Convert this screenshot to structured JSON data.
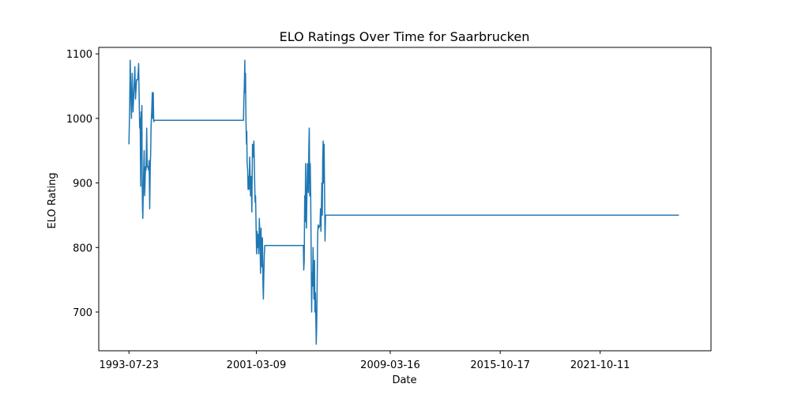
{
  "chart_data": {
    "type": "line",
    "title": "ELO Ratings Over Time for Saarbrucken",
    "xlabel": "Date",
    "ylabel": "ELO Rating",
    "xlim": [
      "1991-10-01",
      "2028-06-01"
    ],
    "ylim": [
      640,
      1110
    ],
    "x_ticks": [
      "1993-07-23",
      "2001-03-09",
      "2009-03-16",
      "2015-10-17",
      "2021-10-11"
    ],
    "y_ticks": [
      700,
      800,
      900,
      1000,
      1100
    ],
    "grid": false,
    "series": [
      {
        "color": "#1f77b4",
        "points": [
          [
            "1993-07-23",
            960
          ],
          [
            "1993-08-07",
            1015
          ],
          [
            "1993-08-18",
            1090
          ],
          [
            "1993-09-01",
            1040
          ],
          [
            "1993-09-15",
            1000
          ],
          [
            "1993-10-01",
            1070
          ],
          [
            "1993-10-20",
            1010
          ],
          [
            "1993-11-10",
            1045
          ],
          [
            "1993-11-28",
            1080
          ],
          [
            "1993-12-12",
            1030
          ],
          [
            "1994-01-05",
            1060
          ],
          [
            "1994-02-01",
            1060
          ],
          [
            "1994-02-20",
            1085
          ],
          [
            "1994-03-05",
            1020
          ],
          [
            "1994-03-15",
            985
          ],
          [
            "1994-03-25",
            1000
          ],
          [
            "1994-04-05",
            895
          ],
          [
            "1994-04-12",
            1010
          ],
          [
            "1994-04-20",
            960
          ],
          [
            "1994-05-01",
            1020
          ],
          [
            "1994-05-08",
            900
          ],
          [
            "1994-05-15",
            860
          ],
          [
            "1994-05-22",
            845
          ],
          [
            "1994-06-01",
            890
          ],
          [
            "1994-06-10",
            920
          ],
          [
            "1994-06-20",
            950
          ],
          [
            "1994-07-01",
            880
          ],
          [
            "1994-07-10",
            900
          ],
          [
            "1994-07-20",
            925
          ],
          [
            "1994-08-01",
            920
          ],
          [
            "1994-08-15",
            985
          ],
          [
            "1994-08-25",
            925
          ],
          [
            "1994-09-10",
            925
          ],
          [
            "1994-09-25",
            920
          ],
          [
            "1994-10-05",
            935
          ],
          [
            "1994-10-12",
            900
          ],
          [
            "1994-10-20",
            860
          ],
          [
            "1994-11-01",
            925
          ],
          [
            "1994-11-10",
            945
          ],
          [
            "1994-11-20",
            990
          ],
          [
            "1994-12-01",
            1010
          ],
          [
            "1994-12-15",
            1040
          ],
          [
            "1994-12-25",
            1000
          ],
          [
            "1995-01-05",
            1040
          ],
          [
            "1995-01-15",
            995
          ],
          [
            "1995-02-01",
            997
          ],
          [
            "2000-06-01",
            997
          ],
          [
            "2000-06-10",
            1030
          ],
          [
            "2000-06-20",
            1050
          ],
          [
            "2000-07-01",
            1090
          ],
          [
            "2000-07-08",
            1040
          ],
          [
            "2000-07-15",
            1070
          ],
          [
            "2000-07-25",
            1000
          ],
          [
            "2000-08-05",
            960
          ],
          [
            "2000-08-12",
            980
          ],
          [
            "2000-08-20",
            930
          ],
          [
            "2000-09-01",
            920
          ],
          [
            "2000-09-10",
            890
          ],
          [
            "2000-09-20",
            910
          ],
          [
            "2000-10-01",
            890
          ],
          [
            "2000-10-15",
            940
          ],
          [
            "2000-11-01",
            880
          ],
          [
            "2000-11-15",
            910
          ],
          [
            "2000-12-01",
            855
          ],
          [
            "2000-12-15",
            960
          ],
          [
            "2001-01-01",
            940
          ],
          [
            "2001-01-15",
            965
          ],
          [
            "2001-02-01",
            900
          ],
          [
            "2001-02-10",
            870
          ],
          [
            "2001-02-20",
            880
          ],
          [
            "2001-03-05",
            830
          ],
          [
            "2001-03-15",
            790
          ],
          [
            "2001-03-25",
            825
          ],
          [
            "2001-04-05",
            800
          ],
          [
            "2001-04-15",
            820
          ],
          [
            "2001-05-01",
            790
          ],
          [
            "2001-05-15",
            845
          ],
          [
            "2001-06-01",
            800
          ],
          [
            "2001-06-10",
            760
          ],
          [
            "2001-06-20",
            830
          ],
          [
            "2001-07-01",
            780
          ],
          [
            "2001-07-10",
            770
          ],
          [
            "2001-07-20",
            815
          ],
          [
            "2001-08-01",
            740
          ],
          [
            "2001-08-10",
            720
          ],
          [
            "2001-08-20",
            760
          ],
          [
            "2001-09-01",
            790
          ],
          [
            "2001-09-10",
            803
          ],
          [
            "2004-01-01",
            803
          ],
          [
            "2004-01-10",
            765
          ],
          [
            "2004-01-20",
            780
          ],
          [
            "2004-02-01",
            880
          ],
          [
            "2004-02-10",
            840
          ],
          [
            "2004-02-20",
            930
          ],
          [
            "2004-03-01",
            860
          ],
          [
            "2004-03-10",
            830
          ],
          [
            "2004-03-20",
            880
          ],
          [
            "2004-04-01",
            930
          ],
          [
            "2004-04-10",
            900
          ],
          [
            "2004-04-20",
            885
          ],
          [
            "2004-05-01",
            960
          ],
          [
            "2004-05-10",
            985
          ],
          [
            "2004-05-20",
            880
          ],
          [
            "2004-06-01",
            930
          ],
          [
            "2004-06-10",
            880
          ],
          [
            "2004-06-20",
            800
          ],
          [
            "2004-07-01",
            700
          ],
          [
            "2004-07-10",
            760
          ],
          [
            "2004-07-20",
            740
          ],
          [
            "2004-08-01",
            800
          ],
          [
            "2004-08-10",
            760
          ],
          [
            "2004-08-20",
            720
          ],
          [
            "2004-09-01",
            780
          ],
          [
            "2004-09-10",
            700
          ],
          [
            "2004-09-20",
            730
          ],
          [
            "2004-10-01",
            690
          ],
          [
            "2004-10-10",
            650
          ],
          [
            "2004-10-20",
            680
          ],
          [
            "2004-11-01",
            760
          ],
          [
            "2004-11-10",
            820
          ],
          [
            "2004-11-20",
            835
          ],
          [
            "2004-12-01",
            830
          ],
          [
            "2005-01-01",
            835
          ],
          [
            "2005-01-10",
            860
          ],
          [
            "2005-01-20",
            825
          ],
          [
            "2005-02-01",
            865
          ],
          [
            "2005-02-10",
            900
          ],
          [
            "2005-02-20",
            850
          ],
          [
            "2005-03-01",
            940
          ],
          [
            "2005-03-10",
            965
          ],
          [
            "2005-03-20",
            900
          ],
          [
            "2005-04-01",
            960
          ],
          [
            "2005-04-10",
            880
          ],
          [
            "2005-04-20",
            810
          ],
          [
            "2005-05-01",
            850
          ],
          [
            "2026-07-01",
            850
          ]
        ]
      }
    ]
  }
}
